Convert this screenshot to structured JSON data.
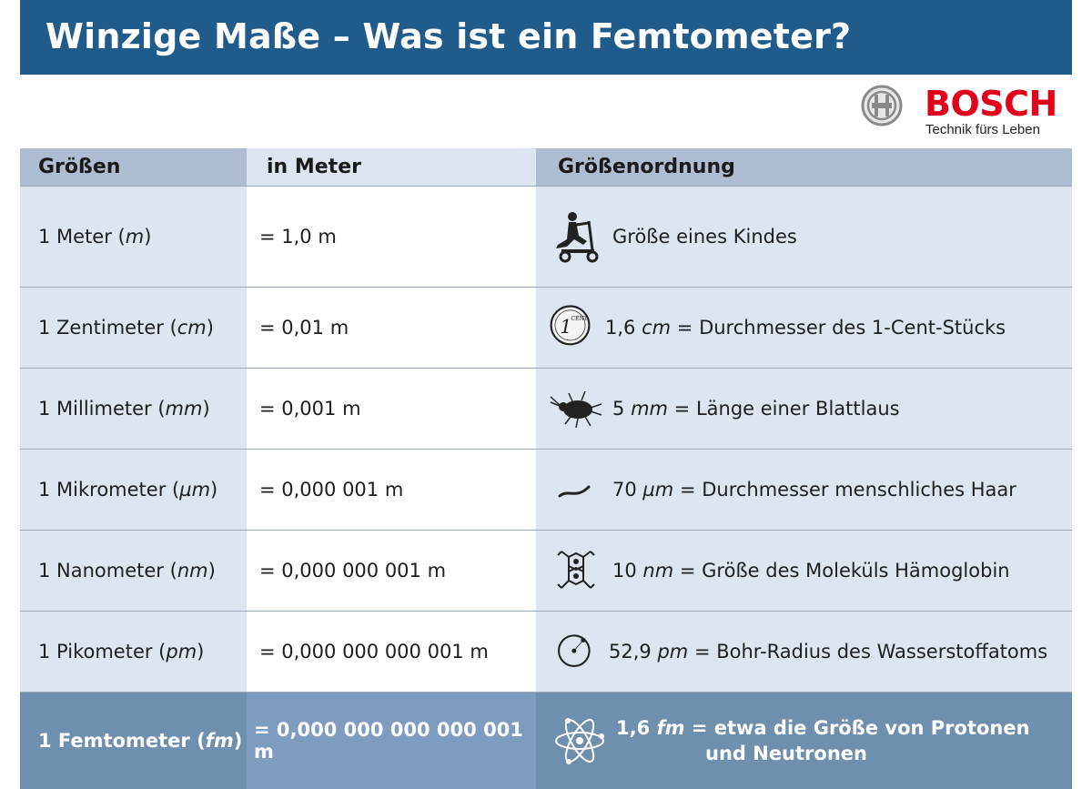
{
  "title": "Winzige Maße – Was ist ein Femtometer?",
  "logo": {
    "brand": "BOSCH",
    "tagline": "Technik fürs Leben",
    "brand_color": "#e2001a"
  },
  "colors": {
    "title_bar": "#1f5c8c",
    "header": "#aebdd2",
    "light": "#dde6f0",
    "highlight": "#6f8fae"
  },
  "table": {
    "headers": [
      "Größen",
      "in Meter",
      "Größenordnung"
    ],
    "rows": [
      {
        "name": "1 Meter",
        "unit": "m",
        "meter": "= 1,0 m",
        "icon": "child-on-scooter-icon",
        "value": "",
        "value_unit": "",
        "desc": "Größe eines Kindes"
      },
      {
        "name": "1 Zentimeter",
        "unit": "cm",
        "meter": "= 0,01 m",
        "icon": "cent-coin-icon",
        "value": "1,6",
        "value_unit": "cm",
        "desc": "= Durchmesser des 1-Cent-Stücks"
      },
      {
        "name": "1 Millimeter",
        "unit": "mm",
        "meter": "= 0,001 m",
        "icon": "aphid-icon",
        "value": "5",
        "value_unit": "mm",
        "desc": "= Länge einer Blattlaus"
      },
      {
        "name": "1 Mikrometer",
        "unit": "µm",
        "meter": "= 0,000 001 m",
        "icon": "hair-icon",
        "value": "70",
        "value_unit": "µm",
        "desc": "= Durchmesser menschliches Haar"
      },
      {
        "name": "1 Nanometer",
        "unit": "nm",
        "meter": "= 0,000 000 001 m",
        "icon": "molecule-icon",
        "value": "10",
        "value_unit": "nm",
        "desc": "= Größe des Moleküls Hämoglobin"
      },
      {
        "name": "1 Pikometer",
        "unit": "pm",
        "meter": "= 0,000 000 000 001 m",
        "icon": "hydrogen-atom-icon",
        "value": "52,9",
        "value_unit": "pm",
        "desc": "= Bohr-Radius des Wasserstoffatoms"
      },
      {
        "name": "1 Femtometer",
        "unit": "fm",
        "meter": "= 0,000 000 000 000 001 m",
        "icon": "atom-icon",
        "value": "1,6",
        "value_unit": "fm",
        "desc": "= etwa die Größe von Protonen",
        "desc2": "und Neutronen"
      }
    ]
  }
}
